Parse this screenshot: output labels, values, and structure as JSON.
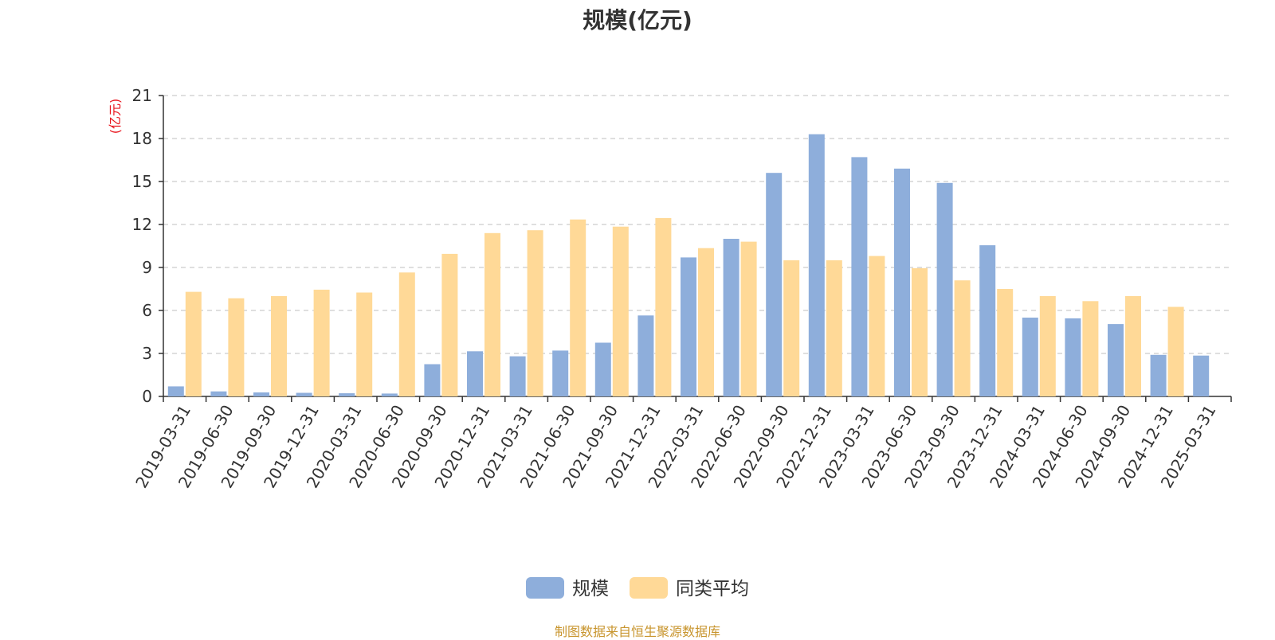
{
  "chart_data": {
    "type": "bar",
    "title": "规模(亿元)",
    "ylabel": "(亿元)",
    "ylim": [
      0,
      21
    ],
    "yticks": [
      "0",
      "3",
      "6",
      "9",
      "12",
      "15",
      "18",
      "21"
    ],
    "grid": true,
    "legend_position": "bottom",
    "categories": [
      "2019-03-31",
      "2019-06-30",
      "2019-09-30",
      "2019-12-31",
      "2020-03-31",
      "2020-06-30",
      "2020-09-30",
      "2020-12-31",
      "2021-03-31",
      "2021-06-30",
      "2021-09-30",
      "2021-12-31",
      "2022-03-31",
      "2022-06-30",
      "2022-09-30",
      "2022-12-31",
      "2023-03-31",
      "2023-06-30",
      "2023-09-30",
      "2023-12-31",
      "2024-03-31",
      "2024-06-30",
      "2024-09-30",
      "2024-12-31",
      "2025-03-31"
    ],
    "series": [
      {
        "name": "规模",
        "color": "#8eaedb",
        "values": [
          0.7,
          0.35,
          0.28,
          0.25,
          0.22,
          0.2,
          2.25,
          3.15,
          2.8,
          3.2,
          3.75,
          5.65,
          9.7,
          11.0,
          15.6,
          18.3,
          16.7,
          15.9,
          14.9,
          10.55,
          5.5,
          5.45,
          5.05,
          2.9,
          2.85
        ]
      },
      {
        "name": "同类平均",
        "color": "#ffd997",
        "values": [
          7.3,
          6.85,
          7.0,
          7.45,
          7.25,
          8.65,
          9.95,
          11.4,
          11.6,
          12.35,
          11.85,
          12.45,
          10.35,
          10.8,
          9.5,
          9.5,
          9.8,
          8.95,
          8.1,
          7.5,
          7.0,
          6.65,
          7.0,
          6.25,
          null
        ]
      }
    ]
  },
  "source_text": "制图数据来自恒生聚源数据库"
}
